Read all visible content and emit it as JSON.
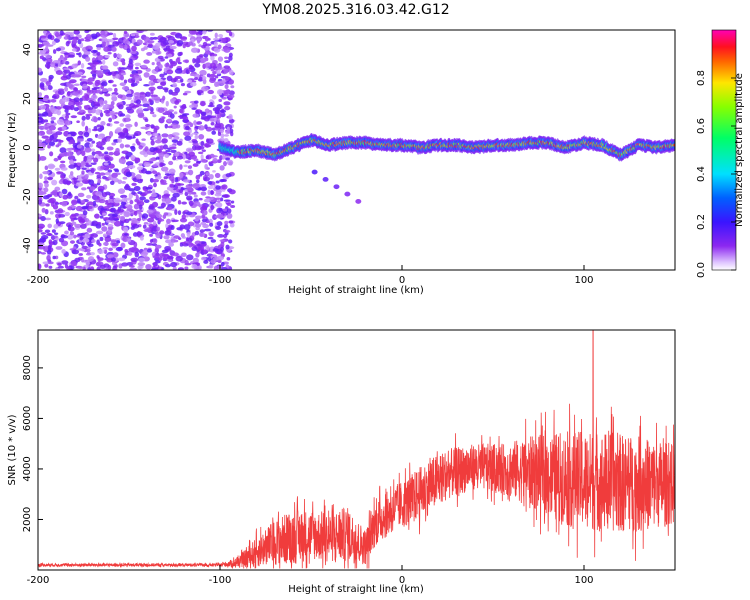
{
  "title": "YM08.2025.316.03.42.G12",
  "chart_data": [
    {
      "type": "heatmap",
      "xlabel": "Height of straight line (km)",
      "ylabel": "Frequency (Hz)",
      "xlim": [
        -200,
        150
      ],
      "ylim": [
        -50,
        48
      ],
      "xticks": [
        -200,
        -100,
        0,
        100
      ],
      "yticks": [
        -40,
        -20,
        0,
        20,
        40
      ],
      "colorbar": {
        "label": "Normalized spectral amplitude",
        "ticks": [
          0.0,
          0.2,
          0.4,
          0.6,
          0.8
        ],
        "range": [
          0.0,
          1.0
        ],
        "colormap": [
          "#e0c8ff",
          "#8c28f0",
          "#3a14ff",
          "#0060ff",
          "#00e0ff",
          "#00ff66",
          "#88ff00",
          "#ffe600",
          "#ff6400",
          "#ff1020",
          "#ff00b4"
        ]
      },
      "noise_region_x": [
        -200,
        -93
      ],
      "trace": [
        {
          "x": -100,
          "f": 0
        },
        {
          "x": -90,
          "f": -2
        },
        {
          "x": -80,
          "f": -1
        },
        {
          "x": -70,
          "f": -3
        },
        {
          "x": -60,
          "f": 0
        },
        {
          "x": -50,
          "f": 3
        },
        {
          "x": -40,
          "f": 1
        },
        {
          "x": -30,
          "f": 2
        },
        {
          "x": -20,
          "f": 2
        },
        {
          "x": -10,
          "f": 1
        },
        {
          "x": 0,
          "f": 1
        },
        {
          "x": 10,
          "f": 0
        },
        {
          "x": 20,
          "f": 1
        },
        {
          "x": 30,
          "f": 1
        },
        {
          "x": 40,
          "f": 0
        },
        {
          "x": 50,
          "f": 1
        },
        {
          "x": 60,
          "f": 1
        },
        {
          "x": 70,
          "f": 2
        },
        {
          "x": 80,
          "f": 2
        },
        {
          "x": 90,
          "f": 0
        },
        {
          "x": 100,
          "f": 2
        },
        {
          "x": 110,
          "f": 1
        },
        {
          "x": 120,
          "f": -3
        },
        {
          "x": 130,
          "f": 1
        },
        {
          "x": 140,
          "f": 0
        },
        {
          "x": 150,
          "f": 1
        }
      ],
      "secondary_trace": [
        {
          "x": -48,
          "f": -10
        },
        {
          "x": -42,
          "f": -13
        },
        {
          "x": -36,
          "f": -16
        },
        {
          "x": -30,
          "f": -19
        },
        {
          "x": -24,
          "f": -22
        }
      ]
    },
    {
      "type": "line",
      "xlabel": "Height of straight line (km)",
      "ylabel": "SNR (10 * v/v)",
      "xlim": [
        -200,
        150
      ],
      "ylim": [
        0,
        9500
      ],
      "xticks": [
        -200,
        -100,
        0,
        100
      ],
      "yticks": [
        2000,
        4000,
        6000,
        8000
      ],
      "color": "#f03c3c",
      "envelope": [
        {
          "x": -200,
          "mean": 200,
          "spread": 60
        },
        {
          "x": -100,
          "mean": 200,
          "spread": 60
        },
        {
          "x": -90,
          "mean": 300,
          "spread": 200
        },
        {
          "x": -80,
          "mean": 700,
          "spread": 600
        },
        {
          "x": -70,
          "mean": 1100,
          "spread": 900
        },
        {
          "x": -60,
          "mean": 1300,
          "spread": 1100
        },
        {
          "x": -50,
          "mean": 1400,
          "spread": 1000
        },
        {
          "x": -40,
          "mean": 1300,
          "spread": 1000
        },
        {
          "x": -30,
          "mean": 1400,
          "spread": 1100
        },
        {
          "x": -20,
          "mean": 900,
          "spread": 700
        },
        {
          "x": -15,
          "mean": 1800,
          "spread": 900
        },
        {
          "x": -5,
          "mean": 2400,
          "spread": 900
        },
        {
          "x": 5,
          "mean": 2800,
          "spread": 1000
        },
        {
          "x": 15,
          "mean": 3300,
          "spread": 1100
        },
        {
          "x": 25,
          "mean": 3800,
          "spread": 1000
        },
        {
          "x": 40,
          "mean": 4100,
          "spread": 900
        },
        {
          "x": 55,
          "mean": 4000,
          "spread": 1000
        },
        {
          "x": 70,
          "mean": 3900,
          "spread": 1400
        },
        {
          "x": 90,
          "mean": 3600,
          "spread": 1900
        },
        {
          "x": 110,
          "mean": 3500,
          "spread": 2000
        },
        {
          "x": 130,
          "mean": 3400,
          "spread": 1900
        },
        {
          "x": 150,
          "mean": 3400,
          "spread": 1600
        }
      ],
      "peak": {
        "x": 105,
        "y": 9500
      }
    }
  ]
}
